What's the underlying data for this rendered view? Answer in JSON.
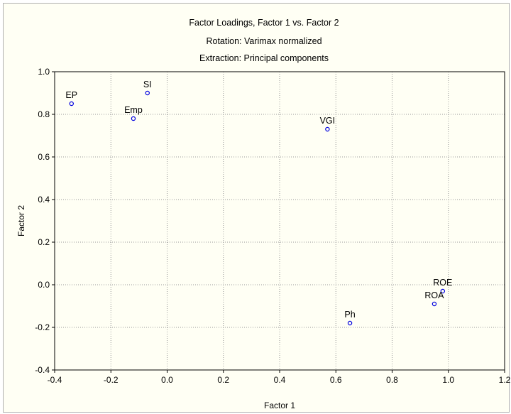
{
  "chart_data": {
    "type": "scatter",
    "title": "Factor Loadings, Factor 1 vs. Factor 2",
    "subtitle_lines": [
      "Rotation: Varimax normalized",
      "Extraction: Principal components"
    ],
    "xlabel": "Factor 1",
    "ylabel": "Factor 2",
    "xlim": [
      -0.4,
      1.2
    ],
    "ylim": [
      -0.4,
      1.0
    ],
    "xticks": [
      "-0.4",
      "-0.2",
      "0.0",
      "0.2",
      "0.4",
      "0.6",
      "0.8",
      "1.0",
      "1.2"
    ],
    "yticks": [
      "-0.4",
      "-0.2",
      "0.0",
      "0.2",
      "0.4",
      "0.6",
      "0.8",
      "1.0"
    ],
    "grid": true,
    "marker_color": "#0000e0",
    "points": [
      {
        "label": "EP",
        "x": -0.34,
        "y": 0.85
      },
      {
        "label": "SI",
        "x": -0.07,
        "y": 0.9
      },
      {
        "label": "Emp",
        "x": -0.12,
        "y": 0.78
      },
      {
        "label": "VGI",
        "x": 0.57,
        "y": 0.73
      },
      {
        "label": "Ph",
        "x": 0.65,
        "y": -0.18
      },
      {
        "label": "ROE",
        "x": 0.98,
        "y": -0.03
      },
      {
        "label": "ROA",
        "x": 0.95,
        "y": -0.09
      }
    ]
  }
}
